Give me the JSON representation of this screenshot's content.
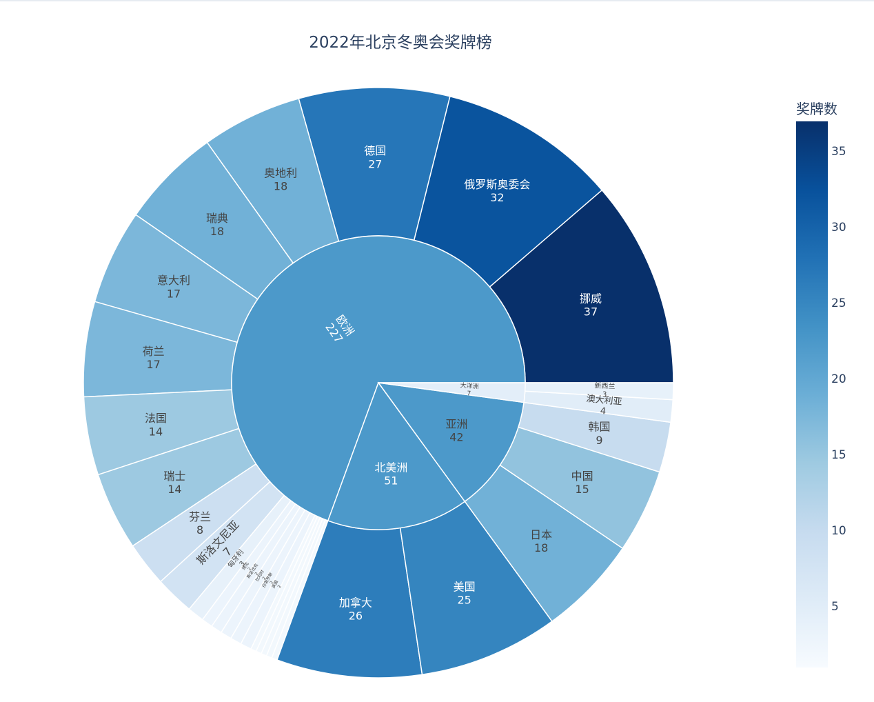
{
  "chart_data": {
    "type": "sunburst",
    "title": "2022年北京冬奥会奖牌榜",
    "colorbar": {
      "title": "奖牌数",
      "range": [
        0,
        37
      ],
      "ticks": [
        5,
        10,
        15,
        20,
        25,
        30,
        35
      ]
    },
    "colorscale": [
      "#f7fbff",
      "#deebf7",
      "#c6dbef",
      "#9ecae1",
      "#6baed6",
      "#4292c6",
      "#2171b5",
      "#08519c",
      "#08306b"
    ],
    "continents": [
      {
        "name": "欧洲",
        "value": 227,
        "children": [
          {
            "name": "挪威",
            "value": 37
          },
          {
            "name": "俄罗斯奥委会",
            "value": 32
          },
          {
            "name": "德国",
            "value": 27
          },
          {
            "name": "奥地利",
            "value": 18
          },
          {
            "name": "瑞典",
            "value": 18
          },
          {
            "name": "意大利",
            "value": 17
          },
          {
            "name": "荷兰",
            "value": 17
          },
          {
            "name": "法国",
            "value": 14
          },
          {
            "name": "瑞士",
            "value": 14
          },
          {
            "name": "芬兰",
            "value": 8
          },
          {
            "name": "斯洛文尼亚",
            "value": 7
          },
          {
            "name": "匈牙利",
            "value": 3
          },
          {
            "name": "捷克",
            "value": 2
          },
          {
            "name": "斯洛伐克",
            "value": 2
          },
          {
            "name": "比利时",
            "value": 2
          },
          {
            "name": "白俄罗斯",
            "value": 2
          },
          {
            "name": "英国",
            "value": 2
          },
          {
            "name": "",
            "value": 1
          },
          {
            "name": "",
            "value": 1
          },
          {
            "name": "",
            "value": 1
          },
          {
            "name": "",
            "value": 1
          },
          {
            "name": "",
            "value": 1
          }
        ]
      },
      {
        "name": "北美洲",
        "value": 51,
        "children": [
          {
            "name": "加拿大",
            "value": 26
          },
          {
            "name": "美国",
            "value": 25
          }
        ]
      },
      {
        "name": "亚洲",
        "value": 42,
        "children": [
          {
            "name": "日本",
            "value": 18
          },
          {
            "name": "中国",
            "value": 15
          },
          {
            "name": "韩国",
            "value": 9
          }
        ]
      },
      {
        "name": "大洋洲",
        "value": 7,
        "children": [
          {
            "name": "澳大利亚",
            "value": 4
          },
          {
            "name": "新西兰",
            "value": 3
          }
        ]
      }
    ]
  }
}
